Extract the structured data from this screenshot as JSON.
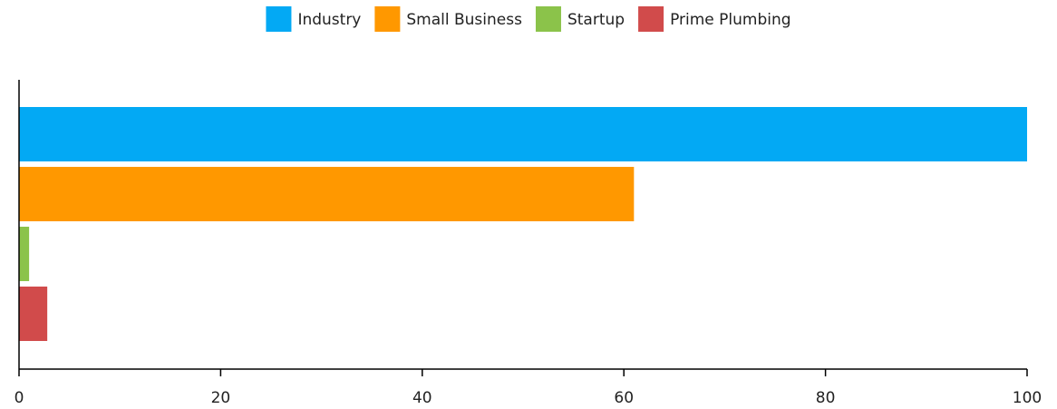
{
  "chart_data": {
    "type": "bar",
    "orientation": "horizontal",
    "legend_position": "top-center",
    "grid": false,
    "xlim": [
      0,
      100
    ],
    "x_ticks": [
      0,
      20,
      40,
      60,
      80,
      100
    ],
    "series": [
      {
        "name": "Industry",
        "value": 100,
        "color": "#03a9f4"
      },
      {
        "name": "Small Business",
        "value": 61,
        "color": "#ff9800"
      },
      {
        "name": "Startup",
        "value": 1,
        "color": "#8bc34a"
      },
      {
        "name": "Prime Plumbing",
        "value": 2.8,
        "color": "#d14b4b"
      }
    ]
  }
}
